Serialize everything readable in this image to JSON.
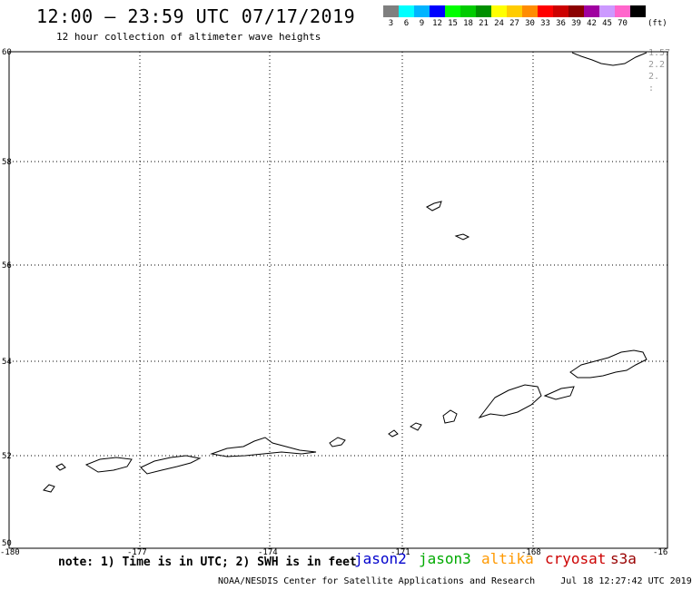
{
  "header": {
    "title": "12:00 – 23:59 UTC 07/17/2019",
    "subtitle": "12 hour collection of altimeter wave heights"
  },
  "legend": {
    "unit": "(ft)",
    "bins": [
      {
        "label": "3",
        "color": "#7f7f7f"
      },
      {
        "label": "6",
        "color": "#00ffff"
      },
      {
        "label": "9",
        "color": "#00b4ff"
      },
      {
        "label": "12",
        "color": "#0000ff"
      },
      {
        "label": "15",
        "color": "#00ff00"
      },
      {
        "label": "18",
        "color": "#00cc00"
      },
      {
        "label": "21",
        "color": "#008f00"
      },
      {
        "label": "24",
        "color": "#ffff00"
      },
      {
        "label": "27",
        "color": "#ffcc00"
      },
      {
        "label": "30",
        "color": "#ff8c00"
      },
      {
        "label": "33",
        "color": "#ff0000"
      },
      {
        "label": "36",
        "color": "#cc0000"
      },
      {
        "label": "39",
        "color": "#8b0000"
      },
      {
        "label": "42",
        "color": "#a000a0"
      },
      {
        "label": "45",
        "color": "#cc99ff"
      },
      {
        "label": "70",
        "color": "#ff66cc"
      },
      {
        "label": "",
        "color": "#000000"
      }
    ]
  },
  "map": {
    "lat_ticks": [
      "60",
      "58",
      "56",
      "54",
      "52",
      "50"
    ],
    "lon_ticks": [
      "-180",
      "-177",
      "-174",
      "-171",
      "-168",
      "-16"
    ],
    "edge_values": [
      "1.57",
      "2.2",
      "2.",
      ":"
    ]
  },
  "footer": {
    "note": "note: 1) Time is in UTC; 2) SWH is in feet",
    "satellites": [
      {
        "name": "jason2",
        "color": "#0000cc"
      },
      {
        "name": "jason3",
        "color": "#00aa00"
      },
      {
        "name": "altika",
        "color": "#ff9900"
      },
      {
        "name": "cryosat",
        "color": "#cc0000"
      },
      {
        "name": "s3a",
        "color": "#990000"
      }
    ],
    "credit": "NOAA/NESDIS Center for Satellite Applications and Research",
    "timestamp": "Jul 18 12:27:42 UTC 2019"
  }
}
